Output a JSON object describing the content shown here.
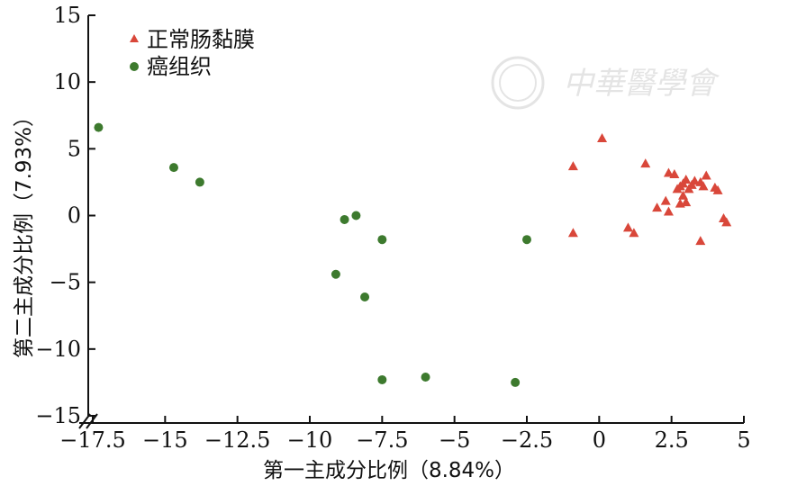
{
  "chart_data": {
    "type": "scatter",
    "xlabel": "第一主成分比例（8.84%）",
    "ylabel": "第二主成分比例（7.93%）",
    "xlim": [
      -17.5,
      5
    ],
    "ylim": [
      -15,
      15
    ],
    "x_ticks": [
      "−17.5",
      "−15",
      "−12.5",
      "−10",
      "−7.5",
      "−5",
      "−2.5",
      "0",
      "2.5",
      "5"
    ],
    "y_ticks": [
      "15",
      "10",
      "5",
      "0",
      "−5",
      "−10",
      "−15"
    ],
    "grid": false,
    "legend": "top-left",
    "series": [
      {
        "name": "正常肠黏膜",
        "marker": "triangle",
        "color": "#d9473a",
        "points": [
          [
            0.1,
            5.8
          ],
          [
            -0.9,
            3.7
          ],
          [
            1.6,
            3.9
          ],
          [
            2.4,
            3.2
          ],
          [
            2.6,
            3.1
          ],
          [
            3.7,
            3.0
          ],
          [
            3.0,
            2.7
          ],
          [
            3.3,
            2.6
          ],
          [
            3.5,
            2.5
          ],
          [
            2.9,
            2.4
          ],
          [
            3.2,
            2.3
          ],
          [
            2.8,
            2.2
          ],
          [
            3.6,
            2.2
          ],
          [
            4.0,
            2.1
          ],
          [
            4.1,
            1.9
          ],
          [
            2.7,
            2.0
          ],
          [
            3.1,
            2.0
          ],
          [
            2.9,
            1.5
          ],
          [
            2.3,
            1.1
          ],
          [
            2.8,
            0.9
          ],
          [
            2.0,
            0.6
          ],
          [
            2.4,
            0.3
          ],
          [
            3.0,
            1.0
          ],
          [
            4.3,
            -0.2
          ],
          [
            4.4,
            -0.5
          ],
          [
            1.0,
            -0.9
          ],
          [
            1.2,
            -1.3
          ],
          [
            -0.9,
            -1.3
          ],
          [
            3.5,
            -1.9
          ]
        ]
      },
      {
        "name": "癌组织",
        "marker": "circle",
        "color": "#3d7a2e",
        "points": [
          [
            -17.3,
            6.6
          ],
          [
            -14.7,
            3.6
          ],
          [
            -13.8,
            2.5
          ],
          [
            -8.8,
            -0.3
          ],
          [
            -8.4,
            0.0
          ],
          [
            -7.5,
            -1.8
          ],
          [
            -2.5,
            -1.8
          ],
          [
            -9.1,
            -4.4
          ],
          [
            -8.1,
            -6.1
          ],
          [
            -7.5,
            -12.3
          ],
          [
            -6.0,
            -12.1
          ],
          [
            -2.9,
            -12.5
          ]
        ]
      }
    ]
  },
  "watermark": {
    "text": "中華醫學會"
  }
}
